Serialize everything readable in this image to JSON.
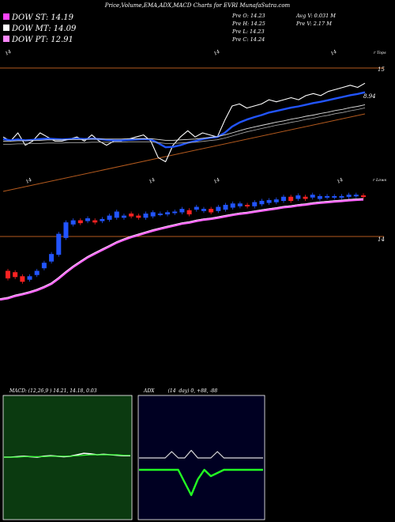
{
  "header": {
    "title": "Price,Volume,EMA,ADX,MACD Charts for EVRI MunafaSutra.com",
    "dow_st": "DOW ST: 14.19",
    "dow_mt": "DOW MT: 14.09",
    "dow_pt": "DOW PT: 12.91",
    "prev_o": "Pre   O: 14.23",
    "prev_h": "Pre   H: 14.25",
    "prev_l": "Pre   L: 14.23",
    "prev_c": "Pre   C: 14.24",
    "avg_v": "Avg V: 0.031 M",
    "prev_v": "Pre   V: 2.17 M"
  },
  "colors": {
    "dow_st": "#ff44ff",
    "dow_mt": "#ffffff",
    "dow_pt": "#ff88ff",
    "ema_blue": "#2255ff",
    "trend_brown": "#b45a1e",
    "up_candle": "#2255ff",
    "down_candle": "#ff2222",
    "ema_magenta": "#ff66ff",
    "macd_bg": "#0b3a10",
    "adx_bg": "#000022",
    "adx_green": "#22ff22"
  },
  "top_chart": {
    "labels": {
      "tops": "r Tops",
      "date_tl": "14",
      "date_tm": "14",
      "date_tr": "14",
      "date_bl": "14",
      "date_bm": "14",
      "date_bm2": "14",
      "date_br": "14",
      "level_15": "15",
      "level_894": "8.94",
      "lows": "r Lows",
      "level_14": "14"
    }
  },
  "chart_data": [
    {
      "type": "line",
      "panel": "price-ema",
      "x": [
        0,
        1,
        2,
        3,
        4,
        5,
        6,
        7,
        8,
        9,
        10,
        11,
        12,
        13,
        14,
        15,
        16,
        17,
        18,
        19,
        20,
        21,
        22,
        23,
        24,
        25,
        26,
        27,
        28,
        29,
        30,
        31,
        32,
        33,
        34,
        35,
        36,
        37,
        38,
        39,
        40,
        41,
        42,
        43,
        44,
        45,
        46,
        47,
        48,
        49
      ],
      "series": [
        {
          "values": [
            14.8,
            14.7,
            14.9,
            14.6,
            14.7,
            14.9,
            14.8,
            14.7,
            14.7,
            14.75,
            14.8,
            14.7,
            14.85,
            14.7,
            14.6,
            14.7,
            14.7,
            14.75,
            14.8,
            14.85,
            14.7,
            14.3,
            14.2,
            14.6,
            14.8,
            14.95,
            14.8,
            14.9,
            14.85,
            14.8,
            15.2,
            15.55,
            15.6,
            15.5,
            15.55,
            15.6,
            15.7,
            15.65,
            15.7,
            15.75,
            15.7,
            15.8,
            15.85,
            15.8,
            15.9,
            15.95,
            16.0,
            16.05,
            16.0,
            16.1
          ]
        },
        {
          "values": [
            14.75,
            14.72,
            14.74,
            14.72,
            14.73,
            14.75,
            14.76,
            14.75,
            14.74,
            14.75,
            14.76,
            14.75,
            14.76,
            14.75,
            14.73,
            14.72,
            14.72,
            14.73,
            14.74,
            14.75,
            14.74,
            14.65,
            14.55,
            14.56,
            14.6,
            14.66,
            14.7,
            14.75,
            14.78,
            14.8,
            14.9,
            15.05,
            15.15,
            15.22,
            15.28,
            15.33,
            15.39,
            15.43,
            15.47,
            15.51,
            15.54,
            15.58,
            15.62,
            15.65,
            15.69,
            15.73,
            15.77,
            15.81,
            15.84,
            15.88
          ]
        },
        {
          "values": [
            14.7,
            14.7,
            14.71,
            14.71,
            14.72,
            14.72,
            14.73,
            14.73,
            14.73,
            14.74,
            14.74,
            14.74,
            14.75,
            14.75,
            14.75,
            14.75,
            14.75,
            14.76,
            14.76,
            14.76,
            14.76,
            14.74,
            14.72,
            14.72,
            14.73,
            14.74,
            14.75,
            14.77,
            14.79,
            14.81,
            14.85,
            14.9,
            14.95,
            15.0,
            15.04,
            15.08,
            15.12,
            15.16,
            15.19,
            15.23,
            15.26,
            15.3,
            15.33,
            15.37,
            15.4,
            15.44,
            15.47,
            15.51,
            15.54,
            15.58
          ]
        }
      ]
    },
    {
      "type": "bar",
      "panel": "candles",
      "x": [
        0,
        1,
        2,
        3,
        4,
        5,
        6,
        7,
        8,
        9,
        10,
        11,
        12,
        13,
        14,
        15,
        16,
        17,
        18,
        19,
        20,
        21,
        22,
        23,
        24,
        25,
        26,
        27,
        28,
        29,
        30,
        31,
        32,
        33,
        34,
        35,
        36,
        37,
        38,
        39,
        40,
        41,
        42,
        43,
        44,
        45,
        46,
        47,
        48,
        49
      ],
      "open": [
        13.3,
        13.28,
        13.22,
        13.18,
        13.25,
        13.35,
        13.45,
        13.55,
        13.8,
        14.0,
        14.05,
        14.05,
        14.05,
        14.05,
        14.07,
        14.1,
        14.1,
        14.15,
        14.12,
        14.1,
        14.12,
        14.15,
        14.15,
        14.17,
        14.18,
        14.2,
        14.22,
        14.2,
        14.22,
        14.2,
        14.22,
        14.25,
        14.27,
        14.28,
        14.27,
        14.3,
        14.32,
        14.33,
        14.35,
        14.4,
        14.38,
        14.4,
        14.4,
        14.38,
        14.4,
        14.4,
        14.4,
        14.41,
        14.42,
        14.42
      ],
      "close": [
        13.2,
        13.22,
        13.15,
        13.22,
        13.3,
        13.42,
        13.55,
        13.85,
        14.02,
        14.05,
        14.02,
        14.08,
        14.03,
        14.07,
        14.12,
        14.18,
        14.12,
        14.12,
        14.1,
        14.15,
        14.17,
        14.15,
        14.17,
        14.18,
        14.22,
        14.15,
        14.25,
        14.22,
        14.18,
        14.25,
        14.28,
        14.3,
        14.3,
        14.27,
        14.32,
        14.34,
        14.35,
        14.36,
        14.4,
        14.35,
        14.42,
        14.38,
        14.43,
        14.41,
        14.41,
        14.41,
        14.41,
        14.43,
        14.43,
        14.41
      ]
    },
    {
      "type": "line",
      "panel": "macd",
      "title": "MACD: (12,26,9 ) 14.21, 14.18, 0.03",
      "x": [
        0,
        1,
        2,
        3,
        4,
        5,
        6,
        7,
        8,
        9,
        10,
        11,
        12,
        13,
        14,
        15,
        16,
        17,
        18,
        19
      ],
      "series": [
        {
          "values": [
            0.0,
            0.0,
            0.01,
            0.02,
            0.01,
            0.0,
            0.02,
            0.03,
            0.02,
            0.01,
            0.02,
            0.05,
            0.08,
            0.07,
            0.05,
            0.06,
            0.05,
            0.04,
            0.03,
            0.03
          ]
        },
        {
          "values": [
            0.0,
            0.0,
            0.0,
            0.01,
            0.01,
            0.01,
            0.01,
            0.02,
            0.02,
            0.02,
            0.02,
            0.03,
            0.04,
            0.05,
            0.05,
            0.05,
            0.05,
            0.05,
            0.04,
            0.04
          ]
        }
      ]
    },
    {
      "type": "line",
      "panel": "adx",
      "title": "ADX         (14  day) 0, +88, -88",
      "x": [
        0,
        1,
        2,
        3,
        4,
        5,
        6,
        7,
        8,
        9,
        10,
        11,
        12,
        13,
        14,
        15,
        16,
        17,
        18,
        19
      ],
      "series": [
        {
          "values": [
            0,
            0,
            0,
            0,
            0,
            10,
            0,
            0,
            12,
            0,
            0,
            0,
            10,
            0,
            0,
            0,
            0,
            0,
            0,
            0
          ]
        },
        {
          "values": [
            0,
            0,
            0,
            0,
            0,
            0,
            0,
            -20,
            -40,
            -15,
            0,
            -10,
            -5,
            0,
            0,
            0,
            0,
            0,
            0,
            0
          ]
        }
      ]
    }
  ]
}
